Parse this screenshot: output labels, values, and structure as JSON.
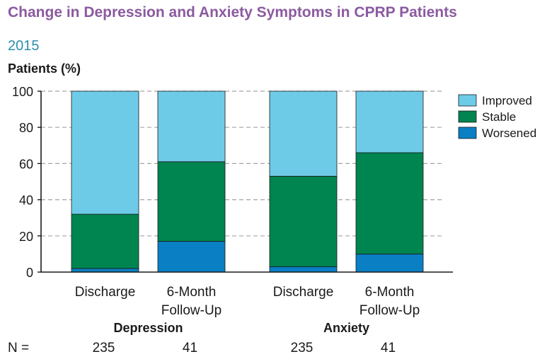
{
  "chart_data": {
    "type": "bar",
    "stacked": true,
    "title": "Change in Depression and Anxiety Symptoms in CPRP Patients",
    "subtitle": "2015",
    "ylabel": "Patients (%)",
    "ylim": [
      0,
      100
    ],
    "yticks": [
      "0",
      "20",
      "40",
      "60",
      "80",
      "100"
    ],
    "grid": true,
    "categories": [
      "Discharge",
      "6-Month Follow-Up",
      "Discharge",
      "6-Month Follow-Up"
    ],
    "category_lines": [
      [
        "Discharge"
      ],
      [
        "6-Month",
        "Follow-Up"
      ],
      [
        "Discharge"
      ],
      [
        "6-Month",
        "Follow-Up"
      ]
    ],
    "groups": [
      {
        "label": "Depression",
        "categories": [
          0,
          1
        ]
      },
      {
        "label": "Anxiety",
        "categories": [
          2,
          3
        ]
      }
    ],
    "series": [
      {
        "name": "Worsened",
        "color": "#0a7fc4",
        "values": [
          2,
          17,
          3,
          10
        ]
      },
      {
        "name": "Stable",
        "color": "#008450",
        "values": [
          30,
          44,
          50,
          56
        ]
      },
      {
        "name": "Improved",
        "color": "#6ecbe8",
        "values": [
          68,
          39,
          47,
          34
        ]
      }
    ],
    "legend_order": [
      "Improved",
      "Stable",
      "Worsened"
    ],
    "legend_position": "top-right",
    "n_label": "N =",
    "n_values": [
      "235",
      "41",
      "235",
      "41"
    ]
  }
}
